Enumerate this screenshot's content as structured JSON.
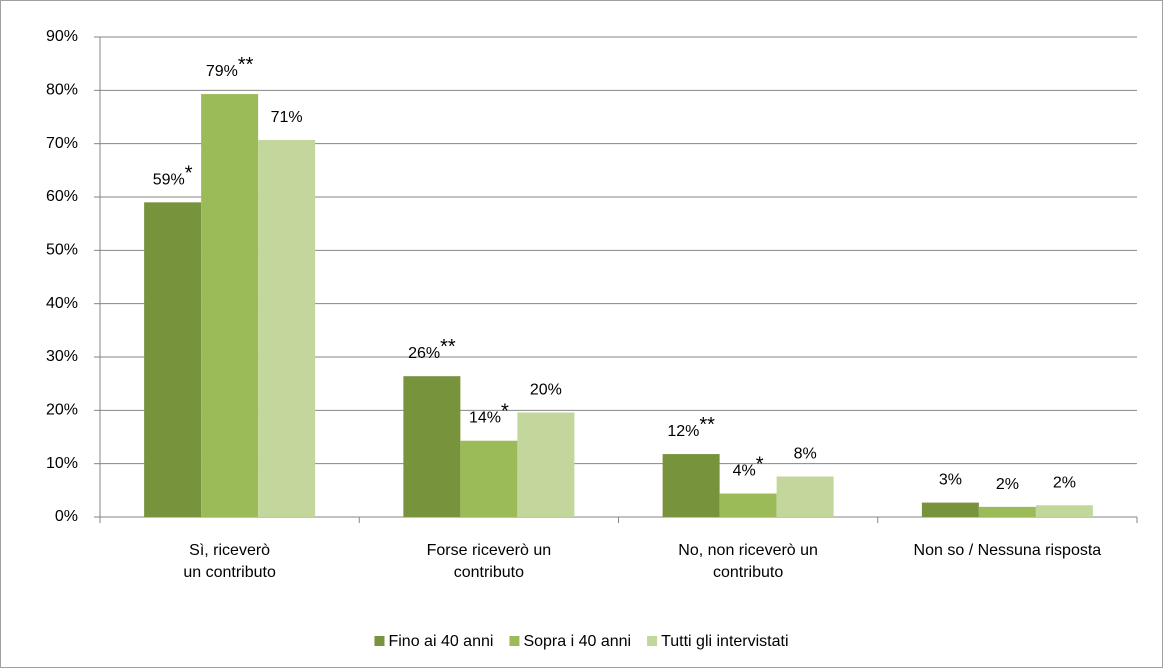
{
  "chart_data": {
    "type": "bar",
    "categories": [
      [
        "Sì, riceverò",
        "un contributo"
      ],
      [
        "Forse riceverò un",
        "contributo"
      ],
      [
        "No, non riceverò un",
        "contributo"
      ],
      [
        "Non so / Nessuna risposta"
      ]
    ],
    "series": [
      {
        "name": "Fino ai 40 anni",
        "color": "#77933c",
        "values": [
          59,
          26.4,
          11.8,
          2.7
        ],
        "value_labels": [
          "59%",
          "26%",
          "12%",
          "3%"
        ],
        "significance": [
          "*",
          "**",
          "**",
          null
        ]
      },
      {
        "name": "Sopra i 40 anni",
        "color": "#9bbb59",
        "values": [
          79.3,
          14.3,
          4.4,
          1.9
        ],
        "value_labels": [
          "79%",
          "14%",
          "4%",
          "2%"
        ],
        "significance": [
          "**",
          "*",
          "*",
          null
        ]
      },
      {
        "name": "Tutti gli intervistati",
        "color": "#c3d69b",
        "values": [
          70.7,
          19.6,
          7.6,
          2.2
        ],
        "value_labels": [
          "71%",
          "20%",
          "8%",
          "2%"
        ],
        "significance": [
          null,
          null,
          null,
          null
        ]
      }
    ],
    "ylim": [
      0,
      90
    ],
    "yticks": [
      {
        "value": 0,
        "label": "0%"
      },
      {
        "value": 10,
        "label": "10%"
      },
      {
        "value": 20,
        "label": "20%"
      },
      {
        "value": 30,
        "label": "30%"
      },
      {
        "value": 40,
        "label": "40%"
      },
      {
        "value": 50,
        "label": "50%"
      },
      {
        "value": 60,
        "label": "60%"
      },
      {
        "value": 70,
        "label": "70%"
      },
      {
        "value": 80,
        "label": "80%"
      },
      {
        "value": 90,
        "label": "90%"
      }
    ],
    "grid": true,
    "legend": "bottom"
  }
}
